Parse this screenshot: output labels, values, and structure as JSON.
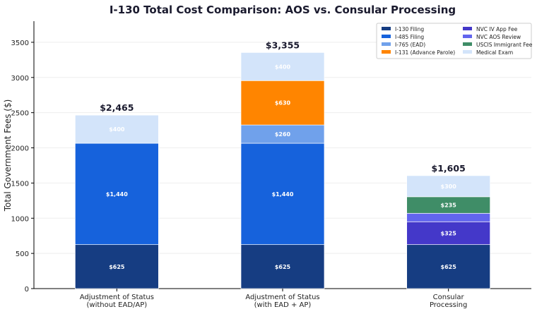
{
  "chart_data": {
    "type": "bar",
    "stacked": true,
    "title": "I-130 Total Cost Comparison: AOS vs. Consular Processing",
    "xlabel": "",
    "ylabel": "Total Government Fees ($)",
    "ylim": [
      0,
      3800
    ],
    "yticks": [
      0,
      500,
      1000,
      1500,
      2000,
      2500,
      3000,
      3500
    ],
    "grid": true,
    "legend": "top-right",
    "categories": [
      "Adjustment of Status\n(without EAD/AP)",
      "Adjustment of Status\n(with EAD + AP)",
      "Consular\nProcessing"
    ],
    "totals": [
      "$2,465",
      "$3,355",
      "$1,605"
    ],
    "series": [
      {
        "name": "I-130 Filing",
        "color": "#163d82",
        "values": [
          625,
          625,
          625
        ],
        "labels": [
          "$625",
          "$625",
          "$625"
        ]
      },
      {
        "name": "I-485 Filing",
        "color": "#1662dc",
        "values": [
          1440,
          1440,
          0
        ],
        "labels": [
          "$1,440",
          "$1,440",
          ""
        ]
      },
      {
        "name": "I-765 (EAD)",
        "color": "#70a1eb",
        "values": [
          0,
          260,
          0
        ],
        "labels": [
          "",
          "$260",
          ""
        ]
      },
      {
        "name": "I-131 (Advance Parole)",
        "color": "#ff8500",
        "values": [
          0,
          630,
          0
        ],
        "labels": [
          "",
          "$630",
          ""
        ]
      },
      {
        "name": "NVC IV App Fee",
        "color": "#4438c9",
        "values": [
          0,
          0,
          325
        ],
        "labels": [
          "",
          "",
          "$325"
        ]
      },
      {
        "name": "NVC AOS Review",
        "color": "#6265ee",
        "values": [
          0,
          0,
          120
        ],
        "labels": [
          "",
          "",
          ""
        ]
      },
      {
        "name": "USCIS Immigrant Fee",
        "color": "#3f8d67",
        "values": [
          0,
          0,
          235
        ],
        "labels": [
          "",
          "",
          "$235"
        ]
      },
      {
        "name": "Medical Exam",
        "color": "#d3e4fa",
        "values": [
          400,
          400,
          300
        ],
        "labels": [
          "$400",
          "$400",
          "$300"
        ]
      }
    ]
  }
}
